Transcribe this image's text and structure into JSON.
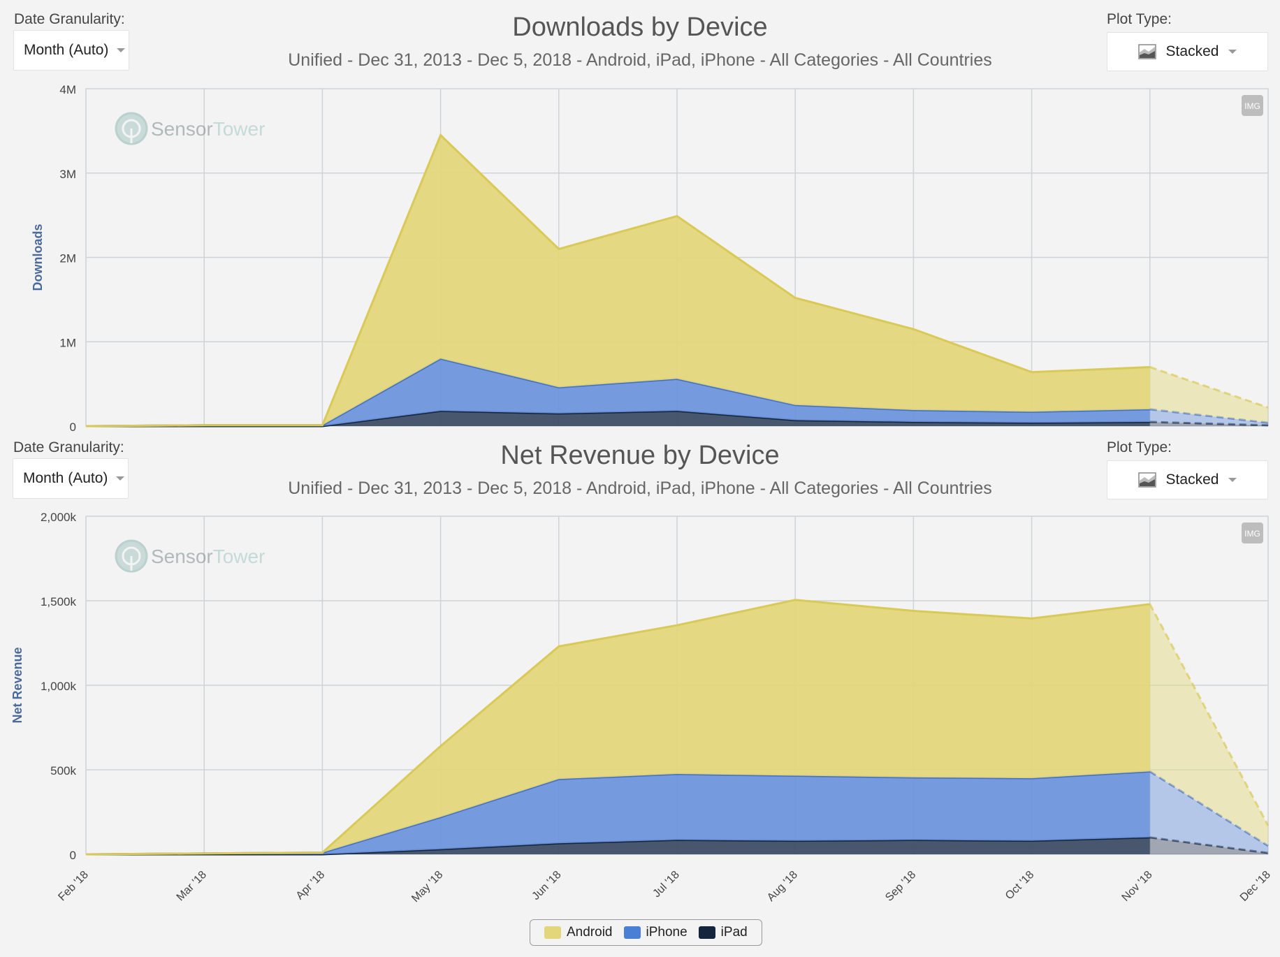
{
  "controls": {
    "granularity_label": "Date Granularity:",
    "granularity_value": "Month (Auto)",
    "plot_type_label": "Plot Type:",
    "plot_type_value": "Stacked",
    "img_button": "IMG"
  },
  "watermark": {
    "part1": "Sensor",
    "part2": "Tower"
  },
  "colors": {
    "android": "#e3d67a",
    "android_line": "#d9c956",
    "iphone": "#6a93dc",
    "iphone_line": "#3f6fc8",
    "ipad": "#3b4a63",
    "ipad_line": "#14243d",
    "grid": "#cfd3d8",
    "axis_title": "#4a6a9a"
  },
  "legend": [
    {
      "label": "Android",
      "color": "#e3d67a"
    },
    {
      "label": "iPhone",
      "color": "#4a7fd6"
    },
    {
      "label": "iPad",
      "color": "#14243d"
    }
  ],
  "chart_data": [
    {
      "type": "area",
      "stacking": "normal",
      "title": "Downloads by Device",
      "subtitle": "Unified - Dec 31, 2013 - Dec 5, 2018 - Android, iPad, iPhone - All Categories - All Countries",
      "ylabel": "Downloads",
      "xlabel": "",
      "ylim": [
        0,
        4000000
      ],
      "yticks": [
        0,
        1000000,
        2000000,
        3000000,
        4000000
      ],
      "ytick_labels": [
        "0",
        "1M",
        "2M",
        "3M",
        "4M"
      ],
      "categories": [
        "Feb '18",
        "Mar '18",
        "Apr '18",
        "May '18",
        "Jun '18",
        "Jul '18",
        "Aug '18",
        "Sep '18",
        "Oct '18",
        "Nov '18",
        "Dec '18"
      ],
      "projected_from_index": 9,
      "series": [
        {
          "name": "iPad",
          "values": [
            0,
            0,
            0,
            180000,
            150000,
            180000,
            70000,
            50000,
            40000,
            50000,
            10000
          ]
        },
        {
          "name": "iPhone",
          "values": [
            0,
            10000,
            10000,
            620000,
            310000,
            380000,
            180000,
            140000,
            130000,
            150000,
            30000
          ]
        },
        {
          "name": "Android",
          "values": [
            0,
            0,
            0,
            2650000,
            1640000,
            1930000,
            1270000,
            960000,
            470000,
            500000,
            180000
          ]
        }
      ],
      "grid": true,
      "legend": "bottom-center"
    },
    {
      "type": "area",
      "stacking": "normal",
      "title": "Net Revenue by Device",
      "subtitle": "Unified - Dec 31, 2013 - Dec 5, 2018 - Android, iPad, iPhone - All Categories - All Countries",
      "ylabel": "Net Revenue",
      "xlabel": "",
      "ylim": [
        0,
        2000000
      ],
      "yticks": [
        0,
        500000,
        1000000,
        1500000,
        2000000
      ],
      "ytick_labels": [
        "0",
        "500k",
        "1,000k",
        "1,500k",
        "2,000k"
      ],
      "categories": [
        "Feb '18",
        "Mar '18",
        "Apr '18",
        "May '18",
        "Jun '18",
        "Jul '18",
        "Aug '18",
        "Sep '18",
        "Oct '18",
        "Nov '18",
        "Dec '18"
      ],
      "projected_from_index": 9,
      "series": [
        {
          "name": "iPad",
          "values": [
            0,
            0,
            0,
            30000,
            65000,
            85000,
            80000,
            85000,
            80000,
            100000,
            8000
          ]
        },
        {
          "name": "iPhone",
          "values": [
            0,
            5000,
            10000,
            190000,
            380000,
            390000,
            385000,
            370000,
            370000,
            390000,
            42000
          ]
        },
        {
          "name": "Android",
          "values": [
            0,
            0,
            0,
            420000,
            785000,
            880000,
            1040000,
            985000,
            945000,
            990000,
            120000
          ]
        }
      ],
      "grid": true,
      "legend": "bottom-center"
    }
  ]
}
